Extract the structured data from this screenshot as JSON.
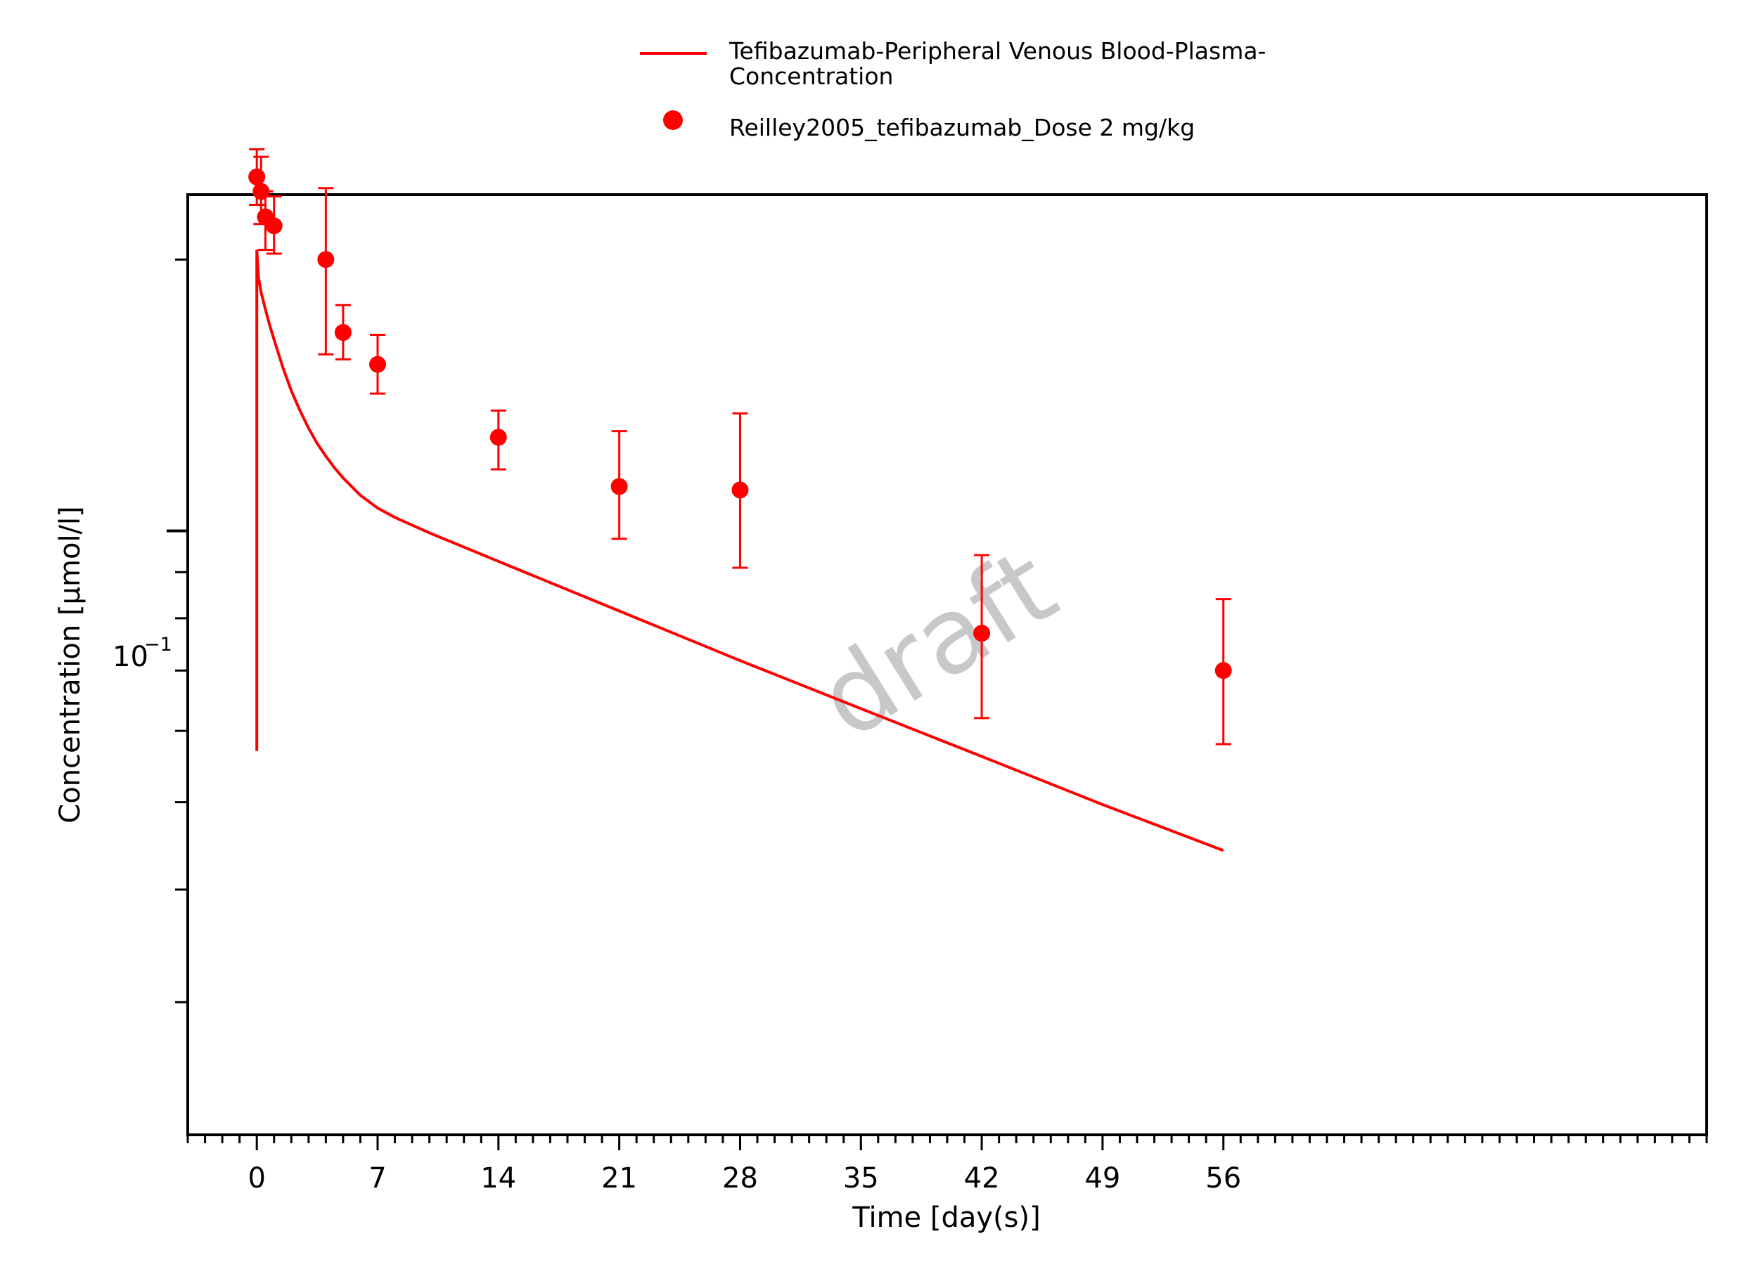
{
  "chart_data": {
    "type": "line",
    "title": "",
    "xlabel": "Time [day(s)]",
    "ylabel": "Concentration [µmol/l]",
    "xlim": [
      -4,
      84
    ],
    "ylim_log10": [
      -1.67,
      -0.627
    ],
    "yscale": "log",
    "x_ticks": [
      "0",
      "7",
      "14",
      "21",
      "28",
      "35",
      "42",
      "49",
      "56"
    ],
    "x_tick_values": [
      0,
      7,
      14,
      21,
      28,
      35,
      42,
      49,
      56
    ],
    "y_tick_label": {
      "base": "10",
      "exp": "−1",
      "value": 0.1
    },
    "watermark": "draft",
    "color": "#ff0000",
    "legend": {
      "position": "top-center",
      "entries": [
        {
          "line1": "Tefibazumab-Peripheral Venous Blood-Plasma-",
          "line2": "Concentration",
          "marker": "line"
        },
        {
          "line1": "Reilley2005_tefibazumab_Dose 2 mg/kg",
          "marker": "circle"
        }
      ]
    },
    "series": [
      {
        "name": "Tefibazumab-Peripheral Venous Blood-Plasma-Concentration",
        "kind": "line",
        "x": [
          0,
          0.001,
          0.1,
          0.25,
          0.5,
          0.75,
          1,
          1.5,
          2,
          2.5,
          3,
          3.5,
          4,
          4.5,
          5,
          6,
          7,
          8,
          10,
          14,
          21,
          28,
          35,
          42,
          49,
          56
        ],
        "y": [
          0.057,
          0.205,
          0.191,
          0.184,
          0.176,
          0.169,
          0.163,
          0.152,
          0.143,
          0.136,
          0.13,
          0.125,
          0.121,
          0.1175,
          0.1145,
          0.1095,
          0.106,
          0.1035,
          0.0995,
          0.0925,
          0.0815,
          0.0718,
          0.0635,
          0.0562,
          0.0497,
          0.0442
        ]
      },
      {
        "name": "Reilley2005_tefibazumab_Dose 2 mg/kg",
        "kind": "scatter",
        "points": [
          {
            "x": 0.0,
            "y": 0.247,
            "lo": 0.23,
            "hi": 0.265
          },
          {
            "x": 0.25,
            "y": 0.238,
            "lo": 0.219,
            "hi": 0.26
          },
          {
            "x": 0.5,
            "y": 0.223,
            "lo": 0.205,
            "hi": 0.238
          },
          {
            "x": 1.0,
            "y": 0.218,
            "lo": 0.203,
            "hi": 0.235
          },
          {
            "x": 4.0,
            "y": 0.2,
            "lo": 0.157,
            "hi": 0.24
          },
          {
            "x": 5.0,
            "y": 0.166,
            "lo": 0.155,
            "hi": 0.178
          },
          {
            "x": 7.0,
            "y": 0.153,
            "lo": 0.142,
            "hi": 0.165
          },
          {
            "x": 14.0,
            "y": 0.127,
            "lo": 0.117,
            "hi": 0.136
          },
          {
            "x": 21.0,
            "y": 0.112,
            "lo": 0.098,
            "hi": 0.129
          },
          {
            "x": 28.0,
            "y": 0.111,
            "lo": 0.091,
            "hi": 0.135
          },
          {
            "x": 42.0,
            "y": 0.077,
            "lo": 0.062,
            "hi": 0.094
          },
          {
            "x": 56.0,
            "y": 0.07,
            "lo": 0.058,
            "hi": 0.084
          }
        ]
      }
    ]
  }
}
